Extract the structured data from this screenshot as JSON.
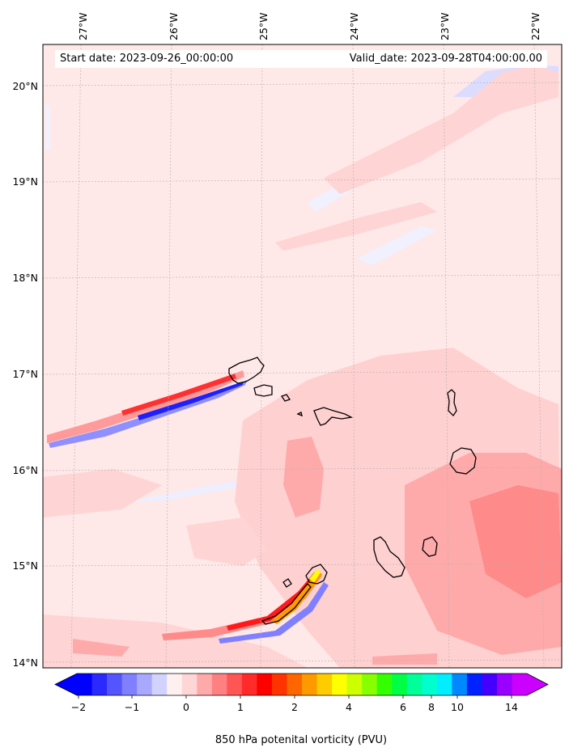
{
  "header": {
    "start_date": "Start date: 2023-09-26_00:00:00",
    "valid_date": "Valid_date: 2023-09-28T04:00:00.00"
  },
  "map": {
    "variable": "850 hPa potenital vorticity",
    "region": "Cape Verde Islands",
    "lon_ticks": [
      "27°W",
      "26°W",
      "25°W",
      "24°W",
      "23°W",
      "22°W"
    ],
    "lat_ticks": [
      "20°N",
      "19°N",
      "18°N",
      "17°N",
      "16°N",
      "15°N",
      "14°N"
    ],
    "gridlines": true,
    "background_color": "#ffe8e8"
  },
  "colorbar": {
    "title": "850 hPa potenital vorticity (PVU)",
    "ticks": [
      "−2",
      "−1",
      "0",
      "1",
      "2",
      "4",
      "6",
      "8",
      "10",
      "14"
    ],
    "colors": [
      "#0000ff",
      "#2a2aff",
      "#5555ff",
      "#7f7fff",
      "#a8a8ff",
      "#d2d2ff",
      "#fff0f0",
      "#ffd6d6",
      "#ffaaaa",
      "#ff8080",
      "#ff5555",
      "#ff2a2a",
      "#ff0000",
      "#ff3300",
      "#ff6600",
      "#ff9900",
      "#ffcc00",
      "#ffff00",
      "#ccff00",
      "#88ff00",
      "#33ff00",
      "#00ff44",
      "#00ff99",
      "#00ffcc",
      "#00eeff",
      "#0088ff",
      "#0022ff",
      "#4400ff",
      "#9900ff",
      "#cc00ff"
    ],
    "extend": "both"
  }
}
